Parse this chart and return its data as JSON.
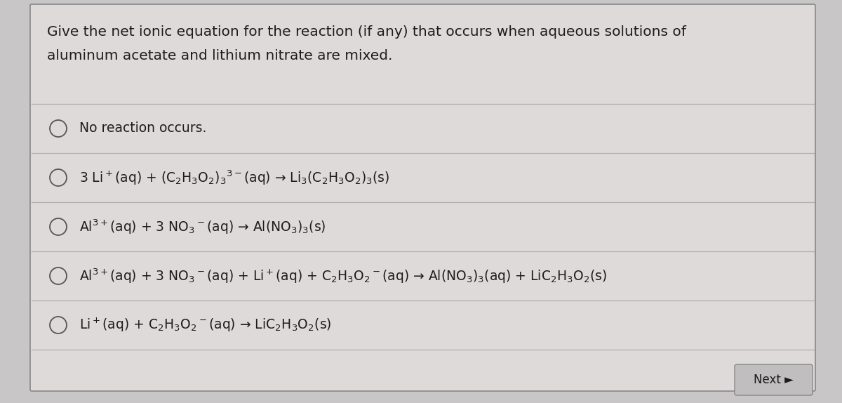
{
  "background_color": "#c8c6c6",
  "panel_color": "#dedad9",
  "panel_border_color": "#888888",
  "title_line1": "Give the net ionic equation for the reaction (if any) that occurs when aqueous solutions of",
  "title_line2": "aluminum acetate and lithium nitrate are mixed.",
  "options": [
    "No reaction occurs.",
    "3 Li$^+$(aq) + (C$_2$H$_3$O$_2$)$_3$$^{3-}$(aq) → Li$_3$(C$_2$H$_3$O$_2$)$_3$(s)",
    "Al$^{3+}$(aq) + 3 NO$_3$$^-$(aq) → Al(NO$_3$)$_3$(s)",
    "Al$^{3+}$(aq) + 3 NO$_3$$^-$(aq) + Li$^+$(aq) + C$_2$H$_3$O$_2$$^-$(aq) → Al(NO$_3$)$_3$(aq) + LiC$_2$H$_3$O$_2$(s)",
    "Li$^+$(aq) + C$_2$H$_3$O$_2$$^-$(aq) → LiC$_2$H$_3$O$_2$(s)"
  ],
  "text_color": "#1c1c1c",
  "line_color": "#b0aeae",
  "circle_color": "#555555",
  "next_button_text": "Next ►",
  "next_btn_color": "#c0bebe",
  "next_btn_border": "#888888",
  "font_size_title": 14.5,
  "font_size_option": 13.5,
  "font_size_next": 12,
  "figwidth": 12.0,
  "figheight": 5.74
}
